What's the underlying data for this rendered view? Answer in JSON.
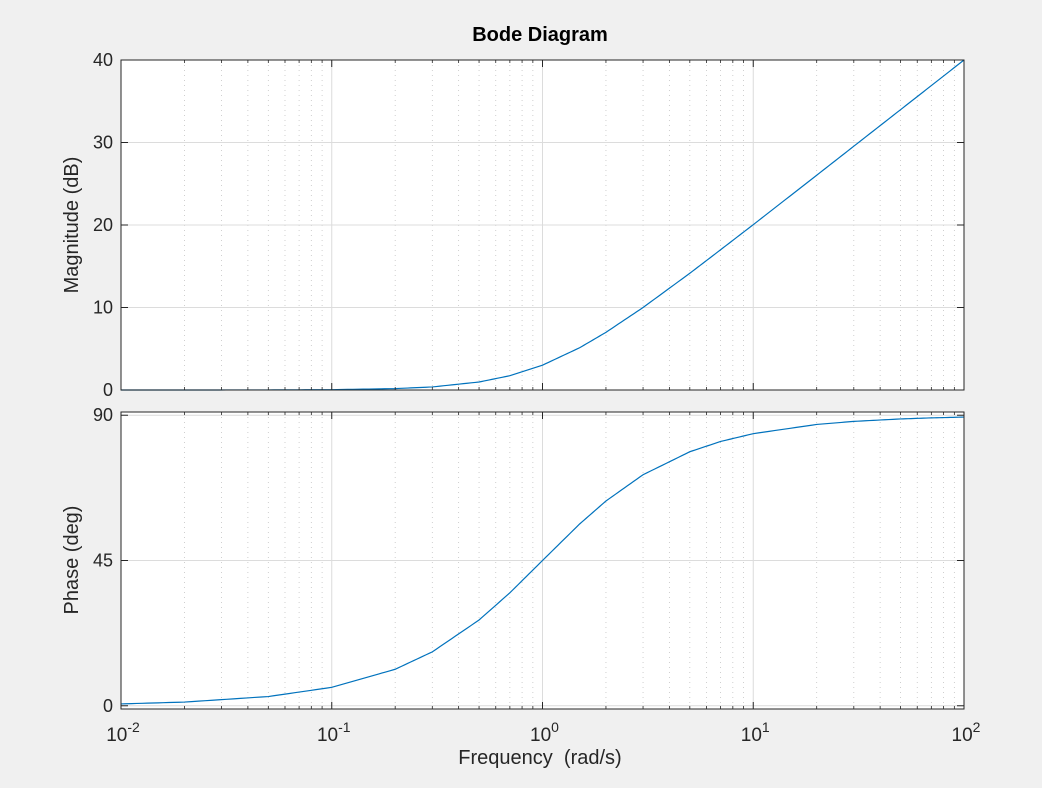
{
  "chart_data": {
    "type": "line",
    "title": "Bode Diagram",
    "xlabel": "Frequency  (rad/s)",
    "x_scale": "log",
    "xlim": [
      0.01,
      100
    ],
    "x_ticks": [
      0.01,
      0.1,
      1,
      10,
      100
    ],
    "x_tick_labels": [
      {
        "base": "10",
        "exp": "-2"
      },
      {
        "base": "10",
        "exp": "-1"
      },
      {
        "base": "10",
        "exp": "0"
      },
      {
        "base": "10",
        "exp": "1"
      },
      {
        "base": "10",
        "exp": "2"
      }
    ],
    "grid": true,
    "line_color": "#0072bd",
    "panels": [
      {
        "name": "magnitude",
        "ylabel": "Magnitude (dB)",
        "ylim": [
          0,
          40
        ],
        "y_ticks": [
          0,
          10,
          20,
          30,
          40
        ],
        "y_tick_labels": [
          "0",
          "10",
          "20",
          "30",
          "40"
        ],
        "series": [
          {
            "x": [
              0.01,
              0.02,
              0.05,
              0.1,
              0.2,
              0.3,
              0.5,
              0.7,
              1,
              1.5,
              2,
              3,
              5,
              7,
              10,
              20,
              30,
              50,
              70,
              100
            ],
            "y": [
              0.0,
              0.0,
              0.01,
              0.04,
              0.17,
              0.37,
              0.97,
              1.73,
              3.01,
              5.12,
              6.99,
              10.0,
              14.15,
              17.0,
              20.04,
              26.03,
              29.55,
              33.98,
              36.9,
              40.0
            ]
          }
        ]
      },
      {
        "name": "phase",
        "ylabel": "Phase (deg)",
        "ylim": [
          -1,
          91
        ],
        "y_ticks": [
          0,
          45,
          90
        ],
        "y_tick_labels": [
          "0",
          "45",
          "90"
        ],
        "series": [
          {
            "x": [
              0.01,
              0.02,
              0.05,
              0.1,
              0.2,
              0.3,
              0.5,
              0.7,
              1,
              1.5,
              2,
              3,
              5,
              7,
              10,
              20,
              30,
              50,
              70,
              100
            ],
            "y": [
              0.57,
              1.15,
              2.86,
              5.71,
              11.31,
              16.7,
              26.57,
              34.99,
              45.0,
              56.31,
              63.43,
              71.57,
              78.69,
              81.87,
              84.29,
              87.14,
              88.09,
              88.85,
              89.18,
              89.43
            ]
          }
        ]
      }
    ]
  }
}
